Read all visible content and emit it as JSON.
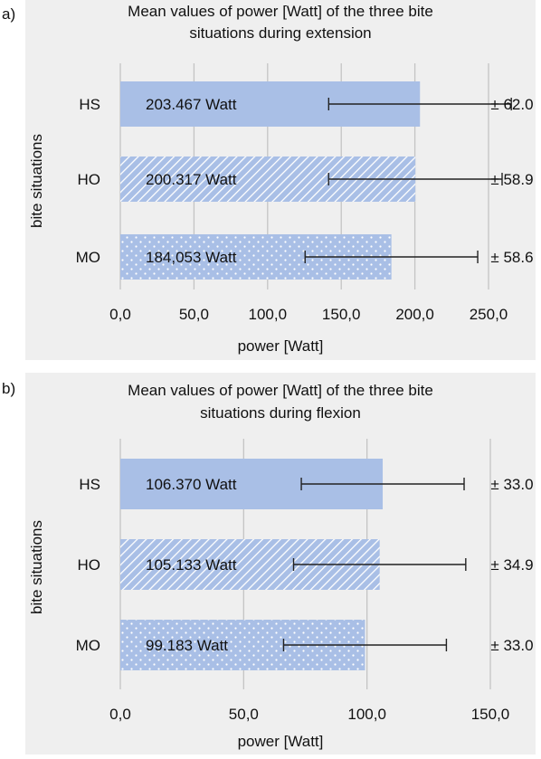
{
  "chart_data": [
    {
      "panel_label": "a)",
      "type": "bar",
      "orientation": "horizontal",
      "title_lines": [
        "Mean values of power [Watt] of the three bite",
        "situations during extension"
      ],
      "xlabel": "power [Watt]",
      "ylabel": "bite situations",
      "xlim": [
        0,
        250
      ],
      "xticks": [
        "0,0",
        "50,0",
        "100,0",
        "150,0",
        "200,0",
        "250,0"
      ],
      "grid": true,
      "categories": [
        "HS",
        "HO",
        "MO"
      ],
      "values": [
        203.467,
        200.317,
        184.053
      ],
      "errors": [
        62.0,
        58.9,
        58.6
      ],
      "bar_labels": [
        "203.467 Watt",
        "200.317 Watt",
        "184,053 Watt"
      ],
      "error_labels": [
        "± 62.0",
        "± 58.9",
        "± 58.6"
      ],
      "patterns": [
        "solid",
        "diagonal",
        "dots"
      ],
      "color": "#a9bfe6"
    },
    {
      "panel_label": "b)",
      "type": "bar",
      "orientation": "horizontal",
      "title_lines": [
        "Mean values of power [Watt] of the three bite",
        "situations during flexion"
      ],
      "xlabel": "power [Watt]",
      "ylabel": "bite situations",
      "xlim": [
        0,
        150
      ],
      "xticks": [
        "0,0",
        "50,0",
        "100,0",
        "150,0"
      ],
      "grid": true,
      "categories": [
        "HS",
        "HO",
        "MO"
      ],
      "values": [
        106.37,
        105.133,
        99.183
      ],
      "errors": [
        33.0,
        34.9,
        33.0
      ],
      "bar_labels": [
        "106.370  Watt",
        "105.133  Watt",
        "99.183  Watt"
      ],
      "error_labels": [
        "± 33.0",
        "± 34.9",
        "± 33.0"
      ],
      "patterns": [
        "solid",
        "diagonal",
        "dots"
      ],
      "color": "#a9bfe6"
    }
  ]
}
